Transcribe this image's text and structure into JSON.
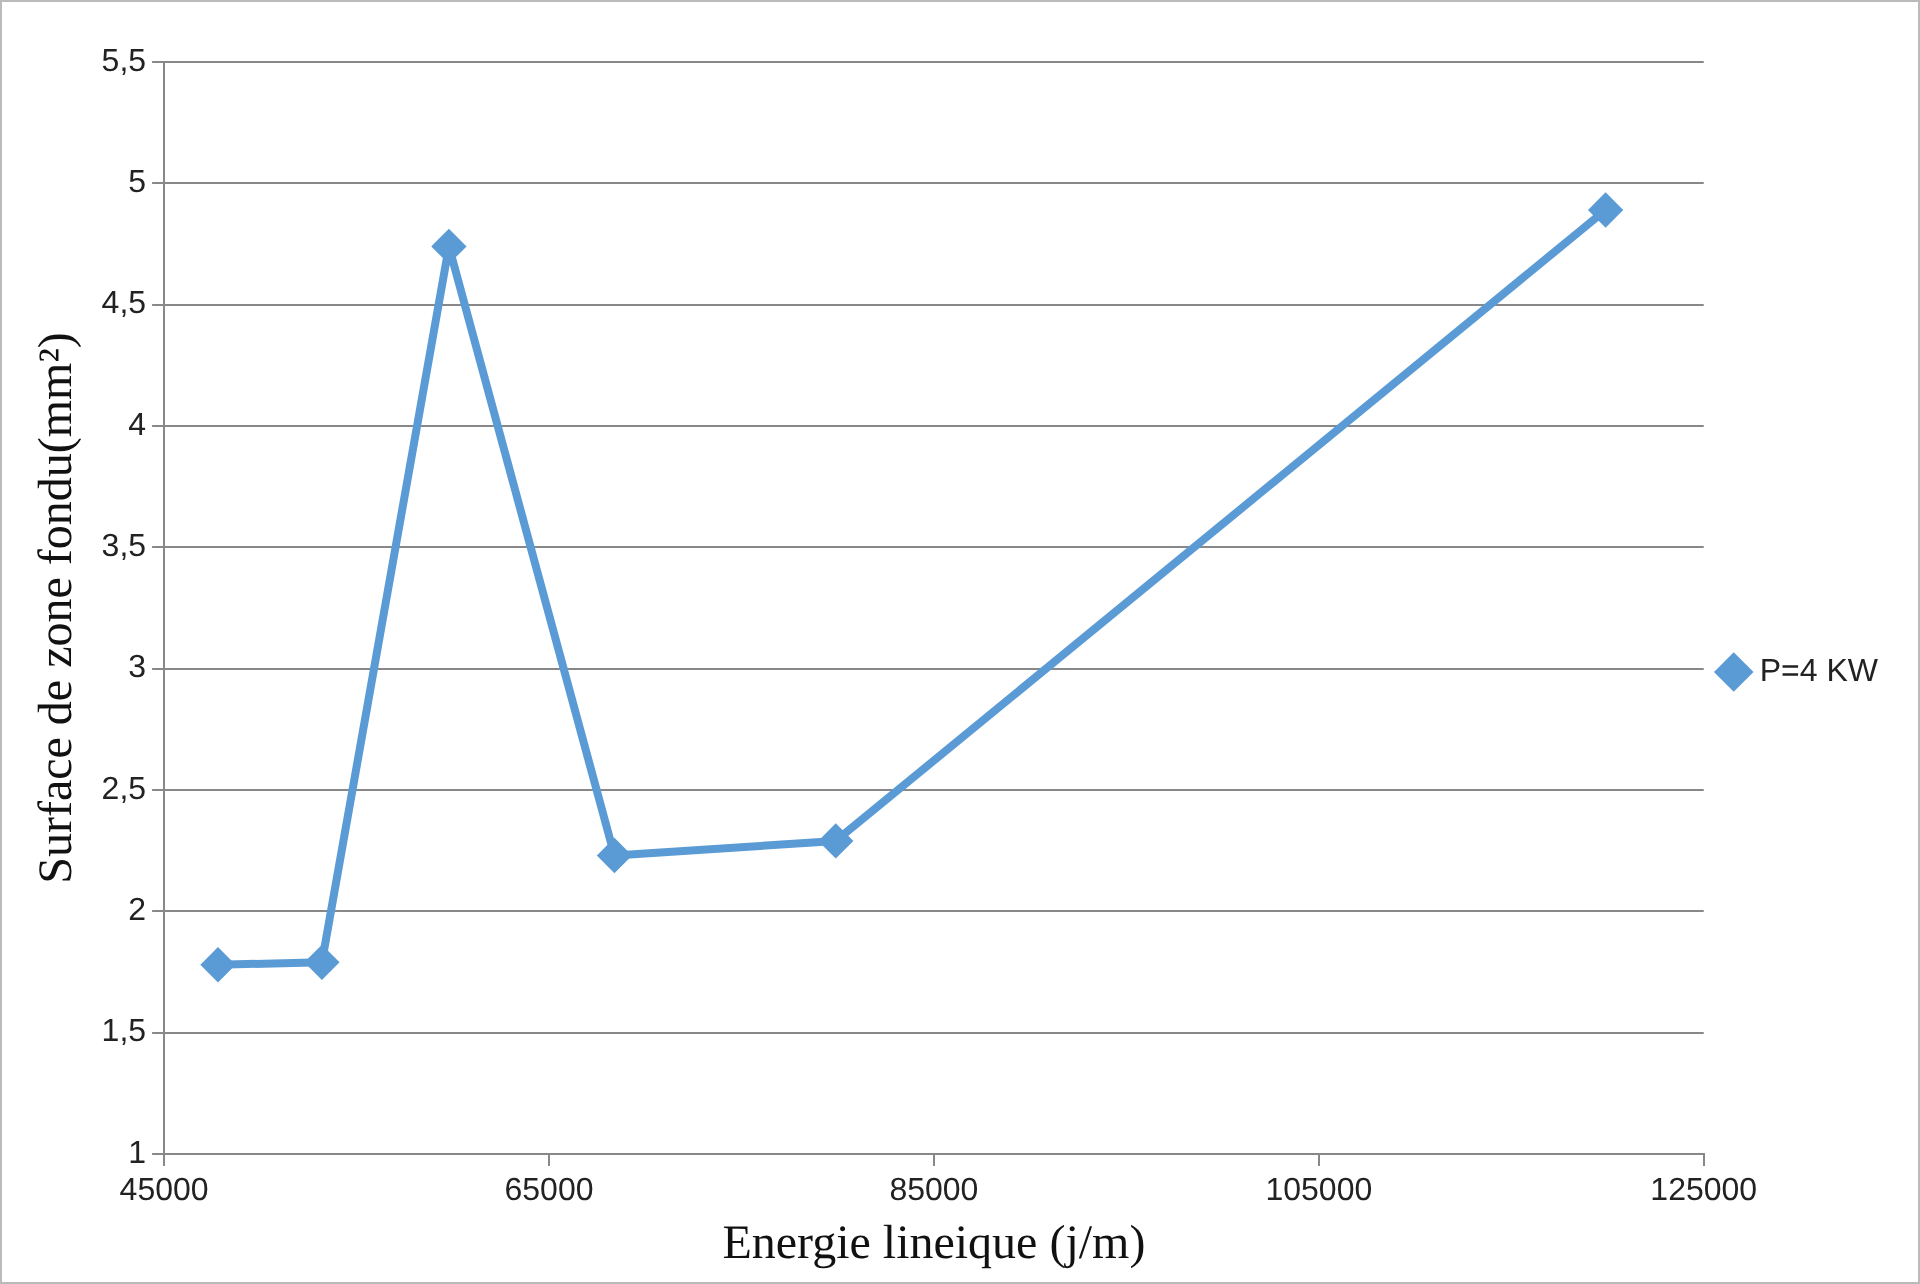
{
  "chart_data": {
    "type": "line",
    "xlabel": "Energie lineique (j/m)",
    "ylabel": "Surface de zone fondu(mm²)",
    "x": [
      47800,
      53200,
      59800,
      68400,
      79900,
      119900
    ],
    "series": [
      {
        "name": "P=4 KW",
        "color": "#5b9bd5",
        "values": [
          1.78,
          1.79,
          4.74,
          2.23,
          2.29,
          4.89
        ]
      }
    ],
    "xlim": [
      45000,
      125000
    ],
    "xticks": [
      45000,
      65000,
      85000,
      105000,
      125000
    ],
    "ylim": [
      1,
      5.5
    ],
    "yticks": [
      1,
      {
        "value": 1.5,
        "label": "1,5"
      },
      2,
      {
        "value": 2.5,
        "label": "2,5"
      },
      3,
      {
        "value": 3.5,
        "label": "3,5"
      },
      4,
      {
        "value": 4.5,
        "label": "4,5"
      },
      5,
      {
        "value": 5.5,
        "label": "5,5"
      }
    ],
    "grid": "y",
    "legend": "right",
    "marker": "diamond",
    "line_style": "solid"
  }
}
